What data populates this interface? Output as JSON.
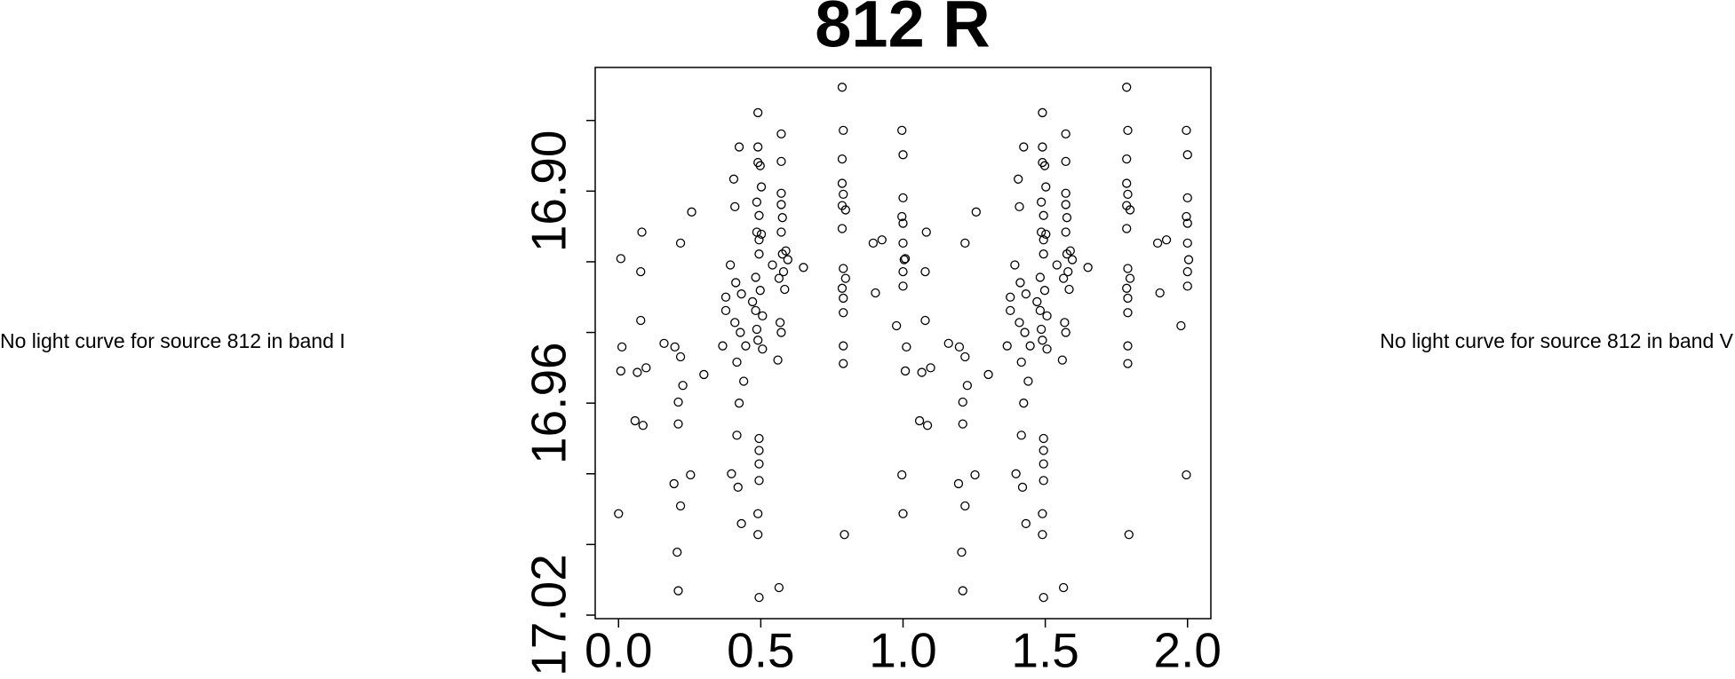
{
  "left_note": "No light curve for source 812 in band I",
  "right_note": "No light curve for source 812 in band V",
  "chart_data": {
    "type": "scatter",
    "title": "812 R",
    "color": "#000000",
    "xlim": [
      -0.082,
      2.082
    ],
    "xticks": [
      {
        "value": 0,
        "label": "0.0"
      },
      0.5,
      {
        "value": 1,
        "label": "1.0"
      },
      1.5,
      {
        "value": 2,
        "label": "2.0"
      }
    ],
    "ylim": [
      17.021,
      16.865
    ],
    "yticks": [
      {
        "value": 16.9,
        "label": "16.90"
      },
      16.96,
      {
        "value": 17.02,
        "label": "17.02"
      }
    ],
    "y_minor_ticks": [
      16.88,
      16.92,
      16.94,
      16.98,
      17.0
    ],
    "x": [
      0,
      0.008,
      0.012,
      0.008,
      0.058,
      0.066,
      0.078,
      0.078,
      0.082,
      0.086,
      0.097,
      0.16,
      0.195,
      0.198,
      0.206,
      0.21,
      0.21,
      0.21,
      0.218,
      0.218,
      0.226,
      0.218,
      0.253,
      0.257,
      0.3,
      0.366,
      0.377,
      0.377,
      0.393,
      0.397,
      0.405,
      0.409,
      0.409,
      0.412,
      0.416,
      0.416,
      0.42,
      0.424,
      0.424,
      0.428,
      0.432,
      0.432,
      0.44,
      0.447,
      0.471,
      0.482,
      0.482,
      0.49,
      0.49,
      0.486,
      0.49,
      0.49,
      0.486,
      0.486,
      0.49,
      0.494,
      0.494,
      0.494,
      0.494,
      0.494,
      0.494,
      0.49,
      0.494,
      0.494,
      0.498,
      0.498,
      0.502,
      0.502,
      0.506,
      0.506,
      0.541,
      0.56,
      0.564,
      0.564,
      0.572,
      0.572,
      0.572,
      0.572,
      0.568,
      0.572,
      0.572,
      0.576,
      0.576,
      0.58,
      0.584,
      0.588,
      0.595,
      0.65,
      0.786,
      0.79,
      0.786,
      0.786,
      0.79,
      0.786,
      0.786,
      0.79,
      0.786,
      0.79,
      0.79,
      0.79,
      0.79,
      0.794,
      0.798,
      0.798,
      0.903,
      0.895,
      0.926,
      0.996,
      1,
      1,
      0.996,
      1,
      1,
      1.004,
      1,
      1,
      0.996,
      0.977,
      1,
      1.008,
      1.012,
      1.008,
      1.058,
      1.066,
      1.078,
      1.078,
      1.082,
      1.086,
      1.097,
      1.16,
      1.195,
      1.198,
      1.206,
      1.21,
      1.21,
      1.21,
      1.218,
      1.218,
      1.226,
      1.218,
      1.253,
      1.257,
      1.3,
      1.366,
      1.377,
      1.377,
      1.393,
      1.397,
      1.405,
      1.409,
      1.409,
      1.412,
      1.416,
      1.416,
      1.42,
      1.424,
      1.424,
      1.428,
      1.432,
      1.432,
      1.44,
      1.447,
      1.471,
      1.482,
      1.482,
      1.49,
      1.49,
      1.486,
      1.49,
      1.49,
      1.486,
      1.486,
      1.49,
      1.494,
      1.494,
      1.494,
      1.494,
      1.494,
      1.494,
      1.49,
      1.494,
      1.494,
      1.498,
      1.498,
      1.502,
      1.502,
      1.506,
      1.506,
      1.541,
      1.56,
      1.564,
      1.564,
      1.572,
      1.572,
      1.572,
      1.572,
      1.568,
      1.572,
      1.572,
      1.576,
      1.576,
      1.58,
      1.584,
      1.588,
      1.595,
      1.65,
      1.786,
      1.79,
      1.786,
      1.786,
      1.79,
      1.786,
      1.786,
      1.79,
      1.786,
      1.79,
      1.79,
      1.79,
      1.79,
      1.794,
      1.798,
      1.798,
      1.903,
      1.895,
      1.926,
      1.996,
      2,
      2,
      1.996,
      2,
      2,
      2.004,
      2,
      2,
      1.996,
      1.977
    ],
    "values": [
      16.9913,
      16.9191,
      16.9441,
      16.9509,
      16.965,
      16.9513,
      16.9366,
      16.9228,
      16.9116,
      16.9663,
      16.95,
      16.9431,
      16.9828,
      16.9441,
      17.0022,
      16.9659,
      16.9597,
      17.0131,
      16.9469,
      16.9147,
      16.955,
      16.9891,
      16.9803,
      16.9059,
      16.9519,
      16.9438,
      16.93,
      16.9338,
      16.9209,
      16.98,
      16.8966,
      16.9372,
      16.9044,
      16.9259,
      16.9691,
      16.9484,
      16.9838,
      16.96,
      16.8875,
      16.94,
      16.9291,
      16.9941,
      16.9538,
      16.9438,
      16.9313,
      16.9338,
      16.9244,
      16.8778,
      16.8875,
      16.9391,
      16.9913,
      16.9972,
      16.9116,
      16.9031,
      16.8919,
      16.9178,
      17.015,
      16.97,
      16.9772,
      16.9819,
      16.9734,
      16.9422,
      16.9069,
      16.9138,
      16.9281,
      16.8928,
      16.8988,
      16.9122,
      16.9353,
      16.9447,
      16.9209,
      16.9478,
      17.0122,
      16.9247,
      16.9038,
      16.9006,
      16.8838,
      16.8916,
      16.9372,
      16.94,
      16.9116,
      16.9075,
      16.9178,
      16.9228,
      16.9278,
      16.9169,
      16.9194,
      16.9216,
      16.8706,
      16.8828,
      16.8909,
      16.8978,
      16.9009,
      16.9041,
      16.9106,
      16.9219,
      16.9275,
      16.9303,
      16.9344,
      16.9438,
      16.9488,
      16.9972,
      16.9053,
      16.9247,
      16.9288,
      16.9147,
      16.9138,
      16.8828,
      16.8897,
      16.9019,
      16.9072,
      16.9091,
      16.9147,
      16.9194,
      16.9228,
      16.9269,
      16.9803,
      16.9381,
      16.9913,
      16.9191,
      16.9441,
      16.9509,
      16.965,
      16.9513,
      16.9366,
      16.9228,
      16.9116,
      16.9663,
      16.95,
      16.9431,
      16.9828,
      16.9441,
      17.0022,
      16.9659,
      16.9597,
      17.0131,
      16.9469,
      16.9147,
      16.955,
      16.9891,
      16.9803,
      16.9059,
      16.9519,
      16.9438,
      16.93,
      16.9338,
      16.9209,
      16.98,
      16.8966,
      16.9372,
      16.9044,
      16.9259,
      16.9691,
      16.9484,
      16.9838,
      16.96,
      16.8875,
      16.94,
      16.9291,
      16.9941,
      16.9538,
      16.9438,
      16.9313,
      16.9338,
      16.9244,
      16.8778,
      16.8875,
      16.9391,
      16.9913,
      16.9972,
      16.9116,
      16.9031,
      16.8919,
      16.9178,
      17.015,
      16.97,
      16.9772,
      16.9819,
      16.9734,
      16.9422,
      16.9069,
      16.9138,
      16.9281,
      16.8928,
      16.8988,
      16.9122,
      16.9353,
      16.9447,
      16.9209,
      16.9478,
      17.0122,
      16.9247,
      16.9038,
      16.9006,
      16.8838,
      16.8916,
      16.9372,
      16.94,
      16.9116,
      16.9075,
      16.9178,
      16.9228,
      16.9278,
      16.9169,
      16.9194,
      16.9216,
      16.8706,
      16.8828,
      16.8909,
      16.8978,
      16.9009,
      16.9041,
      16.9106,
      16.9219,
      16.9275,
      16.9303,
      16.9344,
      16.9438,
      16.9488,
      16.9972,
      16.9053,
      16.9247,
      16.9288,
      16.9147,
      16.9138,
      16.8828,
      16.8897,
      16.9019,
      16.9072,
      16.9091,
      16.9147,
      16.9194,
      16.9228,
      16.9269,
      16.9803,
      16.9381
    ]
  }
}
